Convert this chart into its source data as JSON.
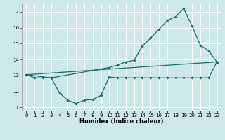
{
  "xlabel": "Humidex (Indice chaleur)",
  "bg_color": "#cce8e8",
  "grid_color": "#ffffff",
  "line_color": "#1a6b6b",
  "xlim": [
    -0.5,
    23.5
  ],
  "ylim": [
    10.8,
    17.5
  ],
  "yticks": [
    11,
    12,
    13,
    14,
    15,
    16,
    17
  ],
  "xticks": [
    0,
    1,
    2,
    3,
    4,
    5,
    6,
    7,
    8,
    9,
    10,
    11,
    12,
    13,
    14,
    15,
    16,
    17,
    18,
    19,
    20,
    21,
    22,
    23
  ],
  "line1_x": [
    0,
    1,
    2,
    3,
    4,
    5,
    6,
    7,
    8,
    9,
    10,
    11,
    12,
    13,
    14,
    15,
    16,
    17,
    18,
    19,
    20,
    21,
    22,
    23
  ],
  "line1_y": [
    13.05,
    12.85,
    12.85,
    12.85,
    11.9,
    11.45,
    11.25,
    11.45,
    11.5,
    11.75,
    12.9,
    12.85,
    12.85,
    12.85,
    12.85,
    12.85,
    12.85,
    12.85,
    12.85,
    12.85,
    12.85,
    12.85,
    12.85,
    13.85
  ],
  "line2_x": [
    0,
    3,
    10,
    11,
    12,
    13,
    14,
    15,
    16,
    17,
    18,
    19,
    20,
    21,
    22,
    23
  ],
  "line2_y": [
    13.05,
    12.85,
    13.5,
    13.65,
    13.85,
    13.95,
    14.85,
    15.35,
    15.9,
    16.45,
    16.7,
    17.2,
    16.1,
    14.9,
    14.55,
    13.85
  ],
  "line3_x": [
    0,
    23
  ],
  "line3_y": [
    13.05,
    13.85
  ]
}
